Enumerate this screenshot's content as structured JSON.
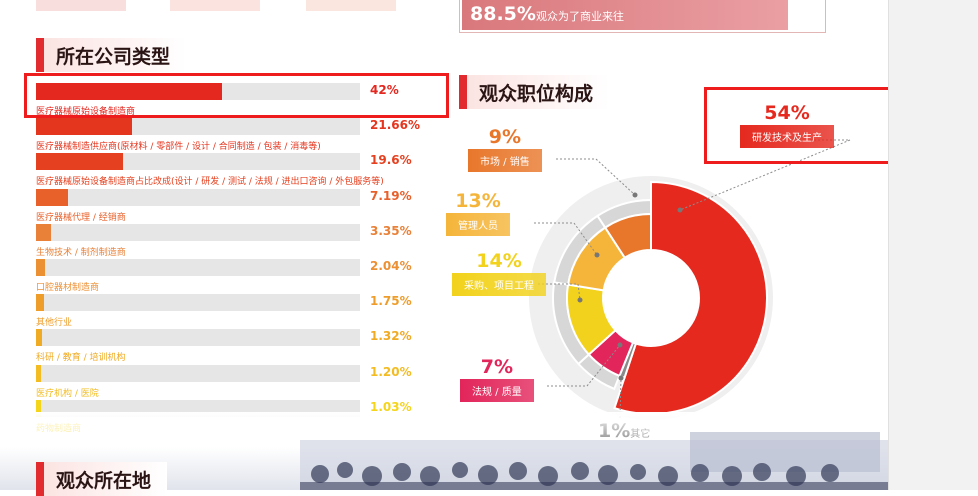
{
  "top_banner": {
    "value": "88.5%",
    "text": "观众为了商业来往"
  },
  "company_section": {
    "title": "所在公司类型"
  },
  "chart_data": [
    {
      "type": "bar",
      "title": "所在公司类型",
      "orientation": "horizontal",
      "categories": [
        "医疗器械原始设备制造商",
        "医疗器械制造供应商(原材料 / 零部件 / 设计 / 合同制造 / 包装 / 消毒等)",
        "医疗器械原始设备制造商占比改成(设计 / 研发 / 测试 / 法规 / 进出口咨询 / 外包服务等)",
        "医疗器械代理 / 经销商",
        "生物技术 / 制剂制造商",
        "口腔器材制造商",
        "其他行业",
        "科研 / 教育 / 培训机构",
        "医疗机构 / 医院",
        "药物制造商"
      ],
      "values": [
        42,
        21.66,
        19.6,
        7.19,
        3.35,
        2.04,
        1.75,
        1.32,
        1.2,
        1.03
      ],
      "value_labels": [
        "42%",
        "21.66%",
        "19.6%",
        "7.19%",
        "3.35%",
        "2.04%",
        "1.75%",
        "1.32%",
        "1.20%",
        "1.03%"
      ],
      "colors": [
        "#e4271f",
        "#e4361f",
        "#e5401f",
        "#e8602a",
        "#e98138",
        "#ec9034",
        "#ee9d2a",
        "#f0ab24",
        "#f2bc22",
        "#f4d51c"
      ],
      "xlim": [
        0,
        73
      ],
      "highlighted_index": 0
    },
    {
      "type": "pie",
      "title": "观众职位构成",
      "donut": true,
      "slices": [
        {
          "label": "研发技术及生产",
          "value": 54,
          "value_label": "54%",
          "color": "#e5291f"
        },
        {
          "label": "其它",
          "value": 1,
          "value_label": "1%",
          "color": "#8a8a8a"
        },
        {
          "label": "法规 / 质量",
          "value": 7,
          "value_label": "7%",
          "color": "#e2255a"
        },
        {
          "label": "采购、项目工程",
          "value": 14,
          "value_label": "14%",
          "color": "#f2d21c"
        },
        {
          "label": "管理人员",
          "value": 13,
          "value_label": "13%",
          "color": "#f5b53a"
        },
        {
          "label": "市场 / 销售",
          "value": 9,
          "value_label": "9%",
          "color": "#e8772b"
        }
      ],
      "highlighted_slice": "研发技术及生产"
    }
  ],
  "position_section": {
    "title": "观众职位构成"
  },
  "location_section": {
    "title": "观众所在地"
  }
}
